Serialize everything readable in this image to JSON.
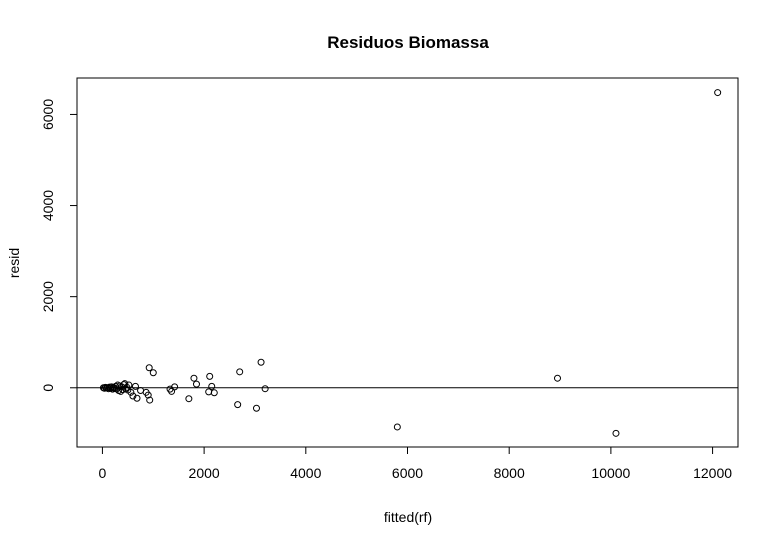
{
  "chart_data": {
    "type": "scatter",
    "title": "Residuos Biomassa",
    "xlabel": "fitted(rf)",
    "ylabel": "resid",
    "xlim": [
      -500,
      12500
    ],
    "ylim": [
      -1300,
      6800
    ],
    "xticks": [
      0,
      2000,
      4000,
      6000,
      8000,
      10000,
      12000
    ],
    "yticks": [
      0,
      2000,
      4000,
      6000
    ],
    "reference_line": {
      "y": 0
    },
    "grid": false,
    "points": [
      {
        "x": 20,
        "y": 0
      },
      {
        "x": 40,
        "y": -10
      },
      {
        "x": 60,
        "y": 10
      },
      {
        "x": 80,
        "y": -5
      },
      {
        "x": 100,
        "y": 0
      },
      {
        "x": 120,
        "y": -20
      },
      {
        "x": 140,
        "y": 15
      },
      {
        "x": 160,
        "y": -10
      },
      {
        "x": 180,
        "y": 20
      },
      {
        "x": 200,
        "y": -30
      },
      {
        "x": 220,
        "y": 5
      },
      {
        "x": 240,
        "y": -15
      },
      {
        "x": 260,
        "y": 30
      },
      {
        "x": 280,
        "y": -25
      },
      {
        "x": 300,
        "y": 60
      },
      {
        "x": 320,
        "y": -60
      },
      {
        "x": 340,
        "y": 40
      },
      {
        "x": 360,
        "y": -80
      },
      {
        "x": 380,
        "y": 20
      },
      {
        "x": 400,
        "y": -40
      },
      {
        "x": 420,
        "y": 70
      },
      {
        "x": 440,
        "y": 90
      },
      {
        "x": 460,
        "y": -20
      },
      {
        "x": 480,
        "y": 10
      },
      {
        "x": 500,
        "y": -50
      },
      {
        "x": 520,
        "y": 60
      },
      {
        "x": 560,
        "y": -100
      },
      {
        "x": 600,
        "y": -180
      },
      {
        "x": 650,
        "y": 30
      },
      {
        "x": 680,
        "y": -230
      },
      {
        "x": 750,
        "y": -60
      },
      {
        "x": 860,
        "y": -100
      },
      {
        "x": 900,
        "y": -160
      },
      {
        "x": 920,
        "y": 440
      },
      {
        "x": 930,
        "y": -270
      },
      {
        "x": 1000,
        "y": 330
      },
      {
        "x": 1330,
        "y": -30
      },
      {
        "x": 1360,
        "y": -80
      },
      {
        "x": 1420,
        "y": 20
      },
      {
        "x": 1700,
        "y": -240
      },
      {
        "x": 1800,
        "y": 210
      },
      {
        "x": 1850,
        "y": 80
      },
      {
        "x": 2090,
        "y": -90
      },
      {
        "x": 2110,
        "y": 250
      },
      {
        "x": 2150,
        "y": 30
      },
      {
        "x": 2200,
        "y": -110
      },
      {
        "x": 2660,
        "y": -370
      },
      {
        "x": 2700,
        "y": 350
      },
      {
        "x": 3030,
        "y": -450
      },
      {
        "x": 3120,
        "y": 560
      },
      {
        "x": 3200,
        "y": -20
      },
      {
        "x": 5800,
        "y": -860
      },
      {
        "x": 8950,
        "y": 210
      },
      {
        "x": 10100,
        "y": -1000
      },
      {
        "x": 12100,
        "y": 6480
      }
    ]
  }
}
